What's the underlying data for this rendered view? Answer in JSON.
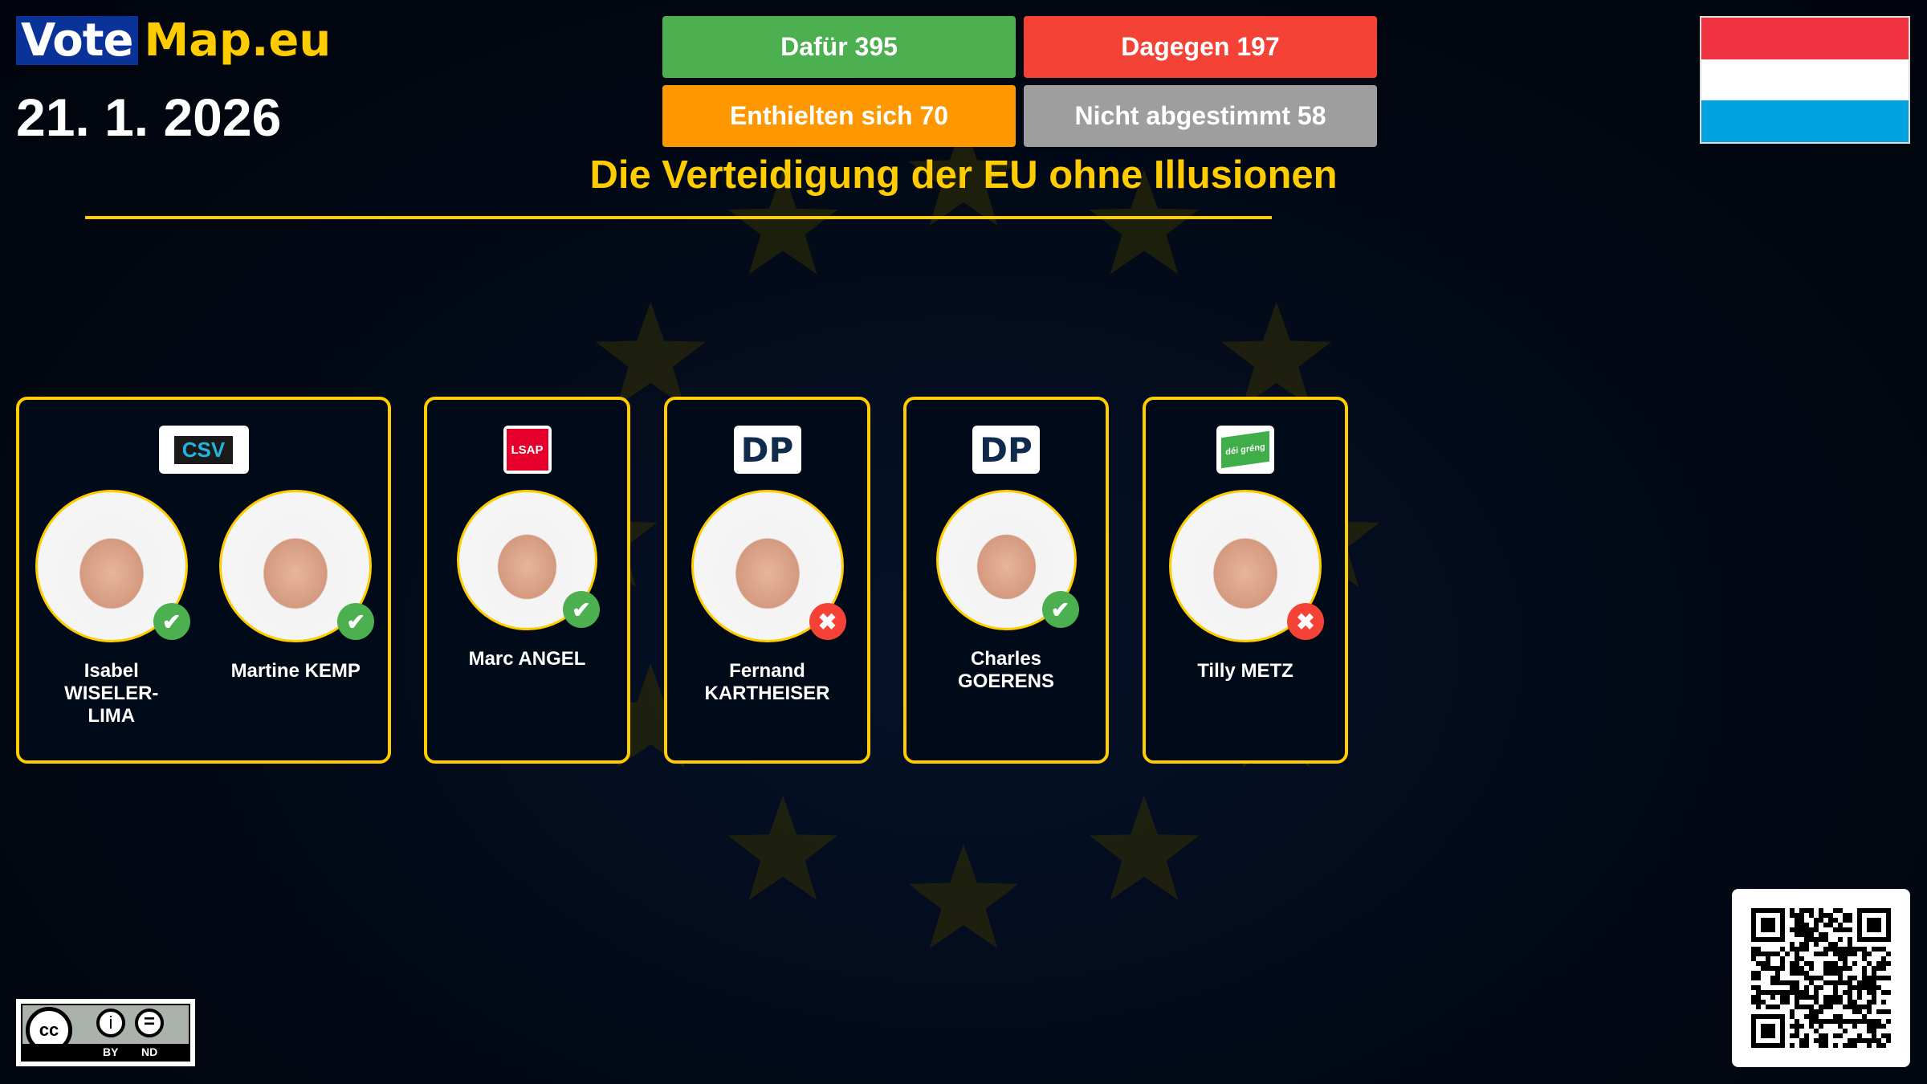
{
  "header": {
    "logo_vote": "Vote",
    "logo_map": "Map.eu",
    "date": "21. 1. 2026"
  },
  "votes": {
    "for": {
      "label": "Dafür 395",
      "color": "#4caf50"
    },
    "against": {
      "label": "Dagegen 197",
      "color": "#f44336"
    },
    "abstain": {
      "label": "Enthielten sich 70",
      "color": "#ff9800"
    },
    "absent": {
      "label": "Nicht abgestimmt 58",
      "color": "#9e9e9e"
    }
  },
  "title": "Die Verteidigung der EU ohne Illusionen",
  "flag": {
    "country": "Luxembourg",
    "colors": [
      "#ef3340",
      "#ffffff",
      "#00a3e0"
    ]
  },
  "cards": [
    {
      "party": "CSV",
      "members": [
        {
          "name": "Isabel WISELER-LIMA",
          "vote": "for"
        },
        {
          "name": "Martine KEMP",
          "vote": "for"
        }
      ]
    },
    {
      "party": "LSAP",
      "members": [
        {
          "name": "Marc ANGEL",
          "vote": "for"
        }
      ]
    },
    {
      "party": "DP",
      "members": [
        {
          "name": "Fernand KARTHEISER",
          "vote": "against"
        }
      ]
    },
    {
      "party": "DP",
      "members": [
        {
          "name": "Charles GOERENS",
          "vote": "for"
        }
      ]
    },
    {
      "party": "déi gréng",
      "members": [
        {
          "name": "Tilly METZ",
          "vote": "against"
        }
      ]
    }
  ],
  "license": {
    "cc": "cc",
    "by": "BY",
    "nd": "ND"
  },
  "icons": {
    "for": "check-icon",
    "against": "cross-icon"
  }
}
